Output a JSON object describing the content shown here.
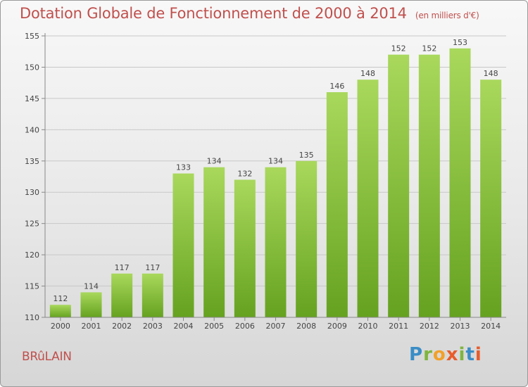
{
  "header": {
    "title": "Dotation Globale de Fonctionnement de 2000 à 2014",
    "unit": "(en milliers d'€)"
  },
  "footer": {
    "commune": "BRûLAIN",
    "logo_text": "Proxiti",
    "logo_letters": [
      "P",
      "r",
      "o",
      "x",
      "i",
      "t",
      "i"
    ]
  },
  "colors": {
    "title": "#c0504d",
    "bar_light": "#a9d85c",
    "bar_dark": "#65a21f"
  },
  "chart_data": {
    "type": "bar",
    "title": "Dotation Globale de Fonctionnement de 2000 à 2014",
    "subtitle": "(en milliers d'€)",
    "xlabel": "",
    "ylabel": "",
    "categories": [
      "2000",
      "2001",
      "2002",
      "2003",
      "2004",
      "2005",
      "2006",
      "2007",
      "2008",
      "2009",
      "2010",
      "2011",
      "2012",
      "2013",
      "2014"
    ],
    "values": [
      112,
      114,
      117,
      117,
      133,
      134,
      132,
      134,
      135,
      146,
      148,
      152,
      152,
      153,
      148
    ],
    "ylim": [
      110,
      155
    ],
    "yticks": [
      110,
      115,
      120,
      125,
      130,
      135,
      140,
      145,
      150,
      155
    ],
    "grid": true
  }
}
